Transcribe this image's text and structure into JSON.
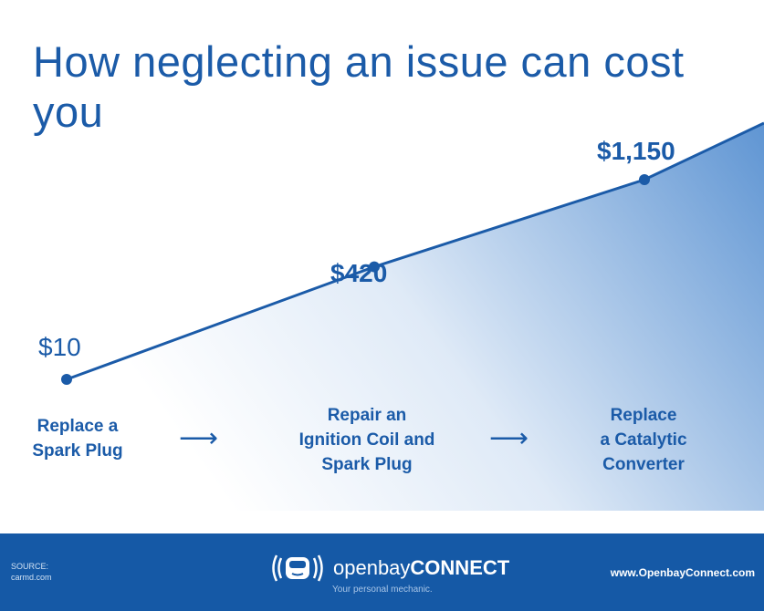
{
  "chart_data": {
    "type": "area",
    "title": "How neglecting an issue can cost you",
    "categories": [
      "Replace a\nSpark Plug",
      "Repair an\nIgnition Coil and\nSpark Plug",
      "Replace\na Catalytic\nConverter"
    ],
    "values": [
      10,
      420,
      1150
    ],
    "data_labels": [
      "$10",
      "$420",
      "$1,150"
    ],
    "color": "#1b5ba8"
  },
  "footer": {
    "source_label": "SOURCE:",
    "source": "carmd.com",
    "brand_light": "openbay",
    "brand_bold": "CONNECT",
    "tagline": "Your personal mechanic.",
    "url": "www.OpenbayConnect.com",
    "background": "#1559a6",
    "logo_icon": "car-signal-icon"
  }
}
